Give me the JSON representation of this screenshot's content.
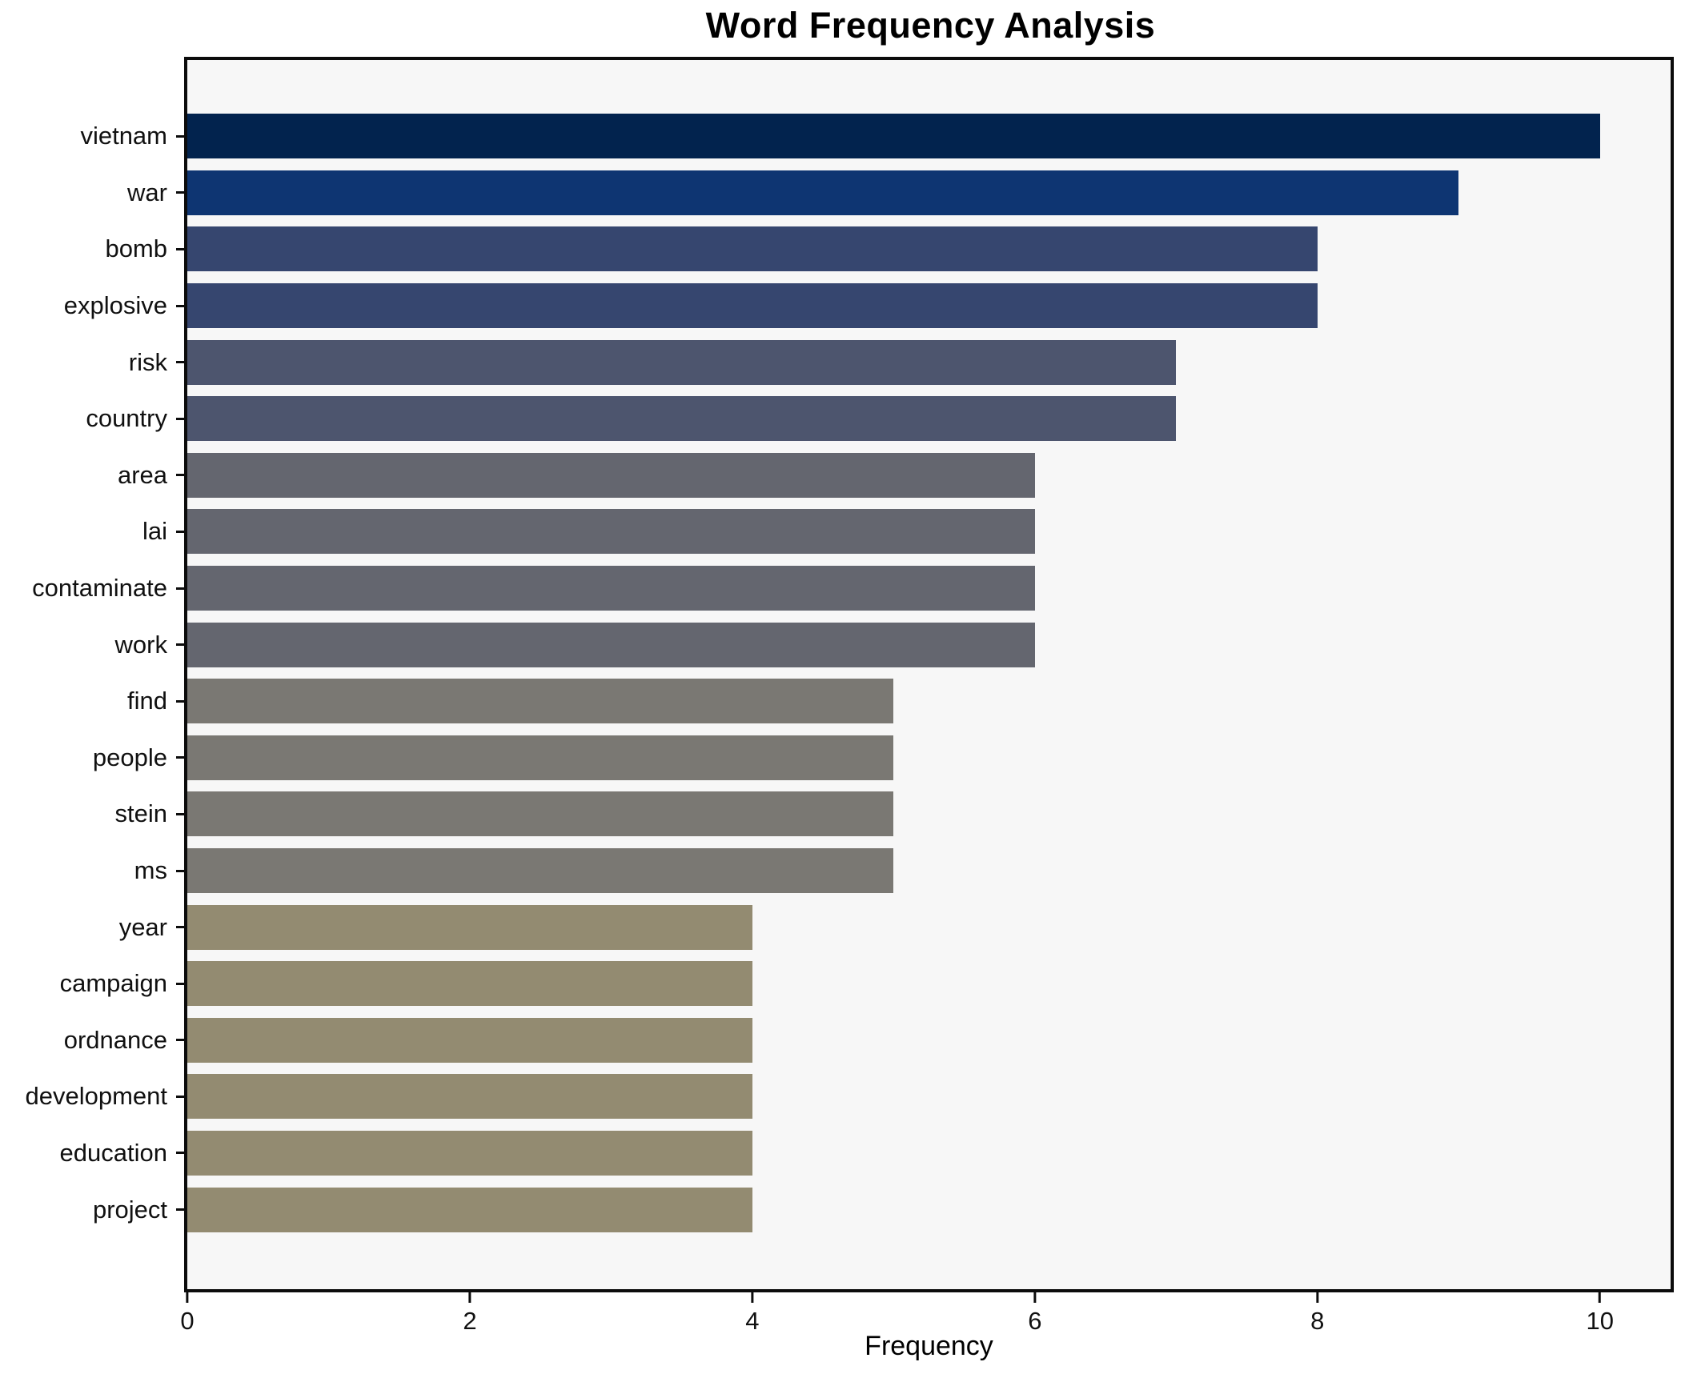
{
  "chart_data": {
    "type": "bar",
    "orientation": "horizontal",
    "title": "Word Frequency Analysis",
    "xlabel": "Frequency",
    "ylabel": "",
    "categories": [
      "vietnam",
      "war",
      "bomb",
      "explosive",
      "risk",
      "country",
      "area",
      "lai",
      "contaminate",
      "work",
      "find",
      "people",
      "stein",
      "ms",
      "year",
      "campaign",
      "ordnance",
      "development",
      "education",
      "project"
    ],
    "values": [
      10,
      9,
      8,
      8,
      7,
      7,
      6,
      6,
      6,
      6,
      5,
      5,
      5,
      5,
      4,
      4,
      4,
      4,
      4,
      4
    ],
    "colors": [
      "#02234e",
      "#0e3572",
      "#36466f",
      "#36466f",
      "#4d556e",
      "#4d556e",
      "#64666f",
      "#64666f",
      "#64666f",
      "#64666f",
      "#7a7873",
      "#7a7873",
      "#7a7873",
      "#7a7873",
      "#938b71",
      "#938b71",
      "#938b71",
      "#938b71",
      "#938b71",
      "#938b71"
    ],
    "xlim": [
      0,
      10.5
    ],
    "xticks": [
      0,
      2,
      4,
      6,
      8,
      10
    ],
    "grid": false,
    "legend": false,
    "plot_background": "#f7f7f7",
    "figure_background": "#ffffff",
    "spine_color": "#0c0c0c"
  }
}
